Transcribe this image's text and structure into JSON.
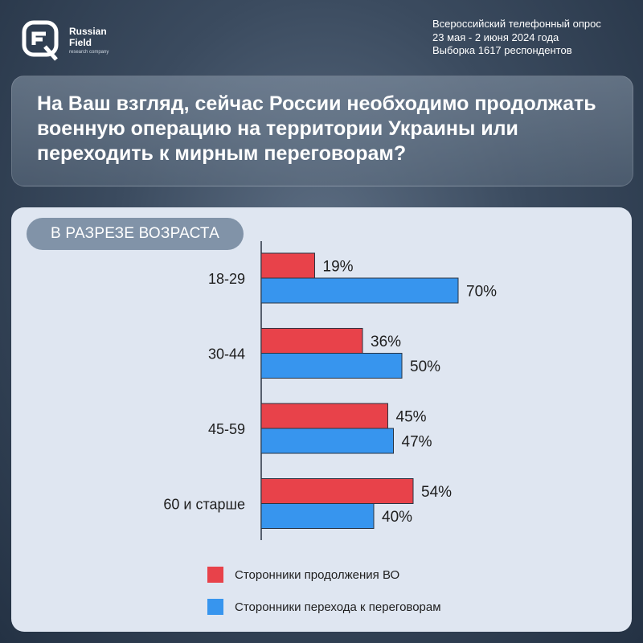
{
  "brand": {
    "name_line1": "Russian",
    "name_line2": "Field",
    "tagline": "research company"
  },
  "survey": {
    "line1": "Всероссийский телефонный опрос",
    "line2": "23 мая - 2 июня 2024 года",
    "line3": "Выборка 1617 респондентов"
  },
  "question": "На Ваш взгляд, сейчас России необходимо продолжать военную  операцию на территории Украины или переходить к мирным  переговорам?",
  "section_label": "В РАЗРЕЗЕ ВОЗРАСТА",
  "colors": {
    "continue": "#e8424a",
    "negotiate": "#3795ee"
  },
  "chart_data": {
    "type": "bar",
    "orientation": "horizontal",
    "categories": [
      "18-29",
      "30-44",
      "45-59",
      "60 и старше"
    ],
    "series": [
      {
        "name": "Сторонники продолжения ВО",
        "values": [
          19,
          36,
          45,
          54
        ],
        "labels": [
          "19%",
          "36%",
          "45%",
          "54%"
        ]
      },
      {
        "name": "Сторонники перехода к переговорам",
        "values": [
          70,
          50,
          47,
          40
        ],
        "labels": [
          "70%",
          "50%",
          "47%",
          "40%"
        ]
      }
    ],
    "legend_position": "bottom",
    "grid": false
  },
  "legend": {
    "item1": "Сторонники продолжения ВО",
    "item2": "Сторонники перехода к переговорам"
  }
}
